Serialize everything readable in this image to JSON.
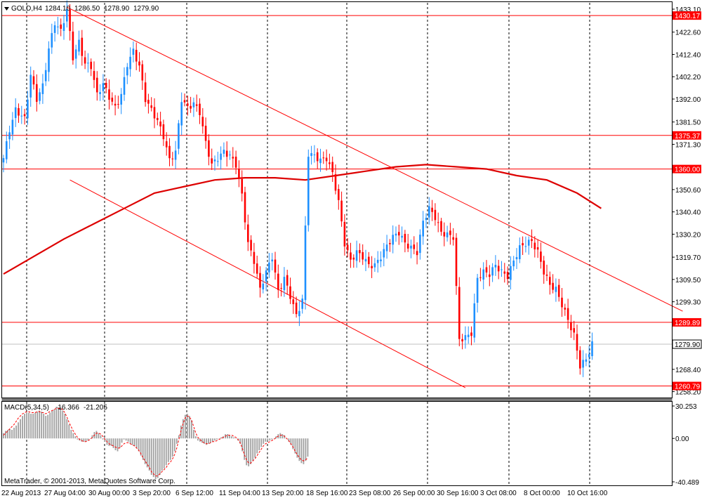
{
  "window": {
    "menu_icon": "triangle-down-icon",
    "symbol": "GOLD,H4",
    "ohlc": [
      "1284.10",
      "1286.50",
      "1278.90",
      "1279.90"
    ]
  },
  "copyright": "MetaTrader, © 2001-2013, MetaQuotes Software Corp.",
  "colors": {
    "up_candle": "#1e90ff",
    "down_candle": "#ff0000",
    "levels": "#ff0000",
    "moving_average": "#dd0000",
    "macd_histogram": "#a0a0a0",
    "macd_signal": "#ff0000",
    "grid": "#000000",
    "last_price_line": "#c0c0c0",
    "level_label_bg": "#ff0000",
    "level_label_text": "#ffffff"
  },
  "chart_data": [
    {
      "type": "candlestick",
      "title": "GOLD,H4",
      "ylim": [
        1255.5,
        1436
      ],
      "y_ticks": [
        "1433.10",
        "1422.60",
        "1412.40",
        "1402.20",
        "1392.00",
        "1381.50",
        "1371.30",
        "1350.60",
        "1340.40",
        "1330.20",
        "1319.70",
        "1309.50",
        "1299.30",
        "1268.40",
        "1258.20"
      ],
      "x_ticks": [
        "22 Aug 2013",
        "27 Aug 04:00",
        "30 Aug 00:00",
        "3 Sep 20:00",
        "6 Sep 12:00",
        "11 Sep 04:00",
        "13 Sep 20:00",
        "18 Sep 16:00",
        "23 Sep 08:00",
        "26 Sep 00:00",
        "30 Sep 16:00",
        "3 Oct 08:00",
        "8 Oct 00:00",
        "10 Oct 16:00"
      ],
      "grid": "vertical dashed",
      "last_price": "1279.90",
      "horizontal_levels": [
        "1430.17",
        "1375.37",
        "1360.00",
        "1289.89",
        "1260.79"
      ],
      "close_path": [
        [
          0,
          1365
        ],
        [
          2,
          1378
        ],
        [
          4,
          1387
        ],
        [
          7,
          1383
        ],
        [
          9,
          1403
        ],
        [
          11,
          1392
        ],
        [
          13,
          1398
        ],
        [
          15,
          1415
        ],
        [
          17,
          1427
        ],
        [
          19,
          1423
        ],
        [
          21,
          1433
        ],
        [
          23,
          1411
        ],
        [
          25,
          1418
        ],
        [
          27,
          1408
        ],
        [
          29,
          1407
        ],
        [
          31,
          1394
        ],
        [
          33,
          1399
        ],
        [
          35,
          1393
        ],
        [
          37,
          1388
        ],
        [
          39,
          1394
        ],
        [
          41,
          1408
        ],
        [
          43,
          1414
        ],
        [
          45,
          1407
        ],
        [
          47,
          1392
        ],
        [
          49,
          1387
        ],
        [
          51,
          1382
        ],
        [
          53,
          1375
        ],
        [
          55,
          1364
        ],
        [
          57,
          1368
        ],
        [
          59,
          1392
        ],
        [
          61,
          1388
        ],
        [
          63,
          1390
        ],
        [
          65,
          1386
        ],
        [
          67,
          1372
        ],
        [
          69,
          1362
        ],
        [
          71,
          1365
        ],
        [
          73,
          1368
        ],
        [
          75,
          1366
        ],
        [
          77,
          1362
        ],
        [
          79,
          1348
        ],
        [
          81,
          1326
        ],
        [
          83,
          1318
        ],
        [
          85,
          1305
        ],
        [
          87,
          1313
        ],
        [
          89,
          1320
        ],
        [
          91,
          1304
        ],
        [
          93,
          1310
        ],
        [
          95,
          1302
        ],
        [
          97,
          1293
        ],
        [
          99,
          1300
        ],
        [
          101,
          1367
        ],
        [
          103,
          1366
        ],
        [
          105,
          1364
        ],
        [
          107,
          1365
        ],
        [
          109,
          1358
        ],
        [
          111,
          1345
        ],
        [
          113,
          1326
        ],
        [
          115,
          1318
        ],
        [
          117,
          1322
        ],
        [
          119,
          1320
        ],
        [
          121,
          1316
        ],
        [
          123,
          1316
        ],
        [
          125,
          1320
        ],
        [
          127,
          1325
        ],
        [
          129,
          1329
        ],
        [
          131,
          1331
        ],
        [
          133,
          1326
        ],
        [
          135,
          1324
        ],
        [
          137,
          1322
        ],
        [
          139,
          1336
        ],
        [
          141,
          1342
        ],
        [
          143,
          1338
        ],
        [
          145,
          1331
        ],
        [
          147,
          1330
        ],
        [
          149,
          1329
        ],
        [
          151,
          1282
        ],
        [
          153,
          1283
        ],
        [
          155,
          1285
        ],
        [
          157,
          1310
        ],
        [
          159,
          1313
        ],
        [
          161,
          1312
        ],
        [
          163,
          1316
        ],
        [
          165,
          1313
        ],
        [
          167,
          1311
        ],
        [
          169,
          1318
        ],
        [
          171,
          1324
        ],
        [
          173,
          1326
        ],
        [
          175,
          1327
        ],
        [
          177,
          1322
        ],
        [
          179,
          1313
        ],
        [
          181,
          1307
        ],
        [
          183,
          1305
        ],
        [
          185,
          1298
        ],
        [
          187,
          1291
        ],
        [
          189,
          1284
        ],
        [
          191,
          1270
        ],
        [
          193,
          1273
        ],
        [
          195,
          1280
        ]
      ],
      "annotations": [
        {
          "type": "trendline",
          "from": [
            21,
            1434
          ],
          "to": [
            225,
            1295
          ]
        },
        {
          "type": "trendline",
          "from": [
            22,
            1355
          ],
          "to": [
            153,
            1260
          ]
        }
      ],
      "moving_average_path": [
        [
          0,
          1312
        ],
        [
          10,
          1320
        ],
        [
          20,
          1328
        ],
        [
          30,
          1335
        ],
        [
          40,
          1342
        ],
        [
          50,
          1349
        ],
        [
          60,
          1352
        ],
        [
          70,
          1355
        ],
        [
          80,
          1356
        ],
        [
          90,
          1356
        ],
        [
          100,
          1355
        ],
        [
          110,
          1357
        ],
        [
          120,
          1359
        ],
        [
          130,
          1361
        ],
        [
          140,
          1362
        ],
        [
          150,
          1361
        ],
        [
          160,
          1360
        ],
        [
          170,
          1357
        ],
        [
          180,
          1355
        ],
        [
          190,
          1349
        ],
        [
          198,
          1342
        ]
      ]
    },
    {
      "type": "bar",
      "title": "MACD(5,34,5)",
      "values_label": [
        "-16.366",
        "-21.205"
      ],
      "ylim": [
        -40.489,
        30.253
      ],
      "y_ticks": [
        "30.253",
        "0.00",
        "-40.489"
      ],
      "histogram": [
        5,
        7,
        8,
        9,
        8,
        10,
        12,
        15,
        18,
        21,
        23,
        24,
        24,
        23,
        23,
        24,
        25,
        26,
        25,
        23,
        21,
        22,
        24,
        26,
        27,
        28,
        29,
        29,
        26,
        23,
        18,
        13,
        8,
        5,
        2,
        -1,
        -2,
        -3,
        -3,
        -3,
        -2,
        0,
        3,
        6,
        7,
        5,
        3,
        -1,
        -3,
        -6,
        -7,
        -7,
        -9,
        -11,
        -12,
        -9,
        -4,
        -1,
        -2,
        -3,
        -5,
        -6,
        -7,
        -9,
        -12,
        -16,
        -20,
        -24,
        -27,
        -30,
        -34,
        -36,
        -38,
        -37,
        -34,
        -30,
        -28,
        -25,
        -22,
        -20,
        -17,
        -12,
        -5,
        3,
        12,
        18,
        22,
        23,
        21,
        17,
        8,
        2,
        -2,
        -3,
        -4,
        -5,
        -6,
        -5,
        -4,
        -3,
        -2,
        -1,
        0,
        1,
        2,
        4,
        4,
        3,
        2,
        1,
        0,
        -2,
        -5,
        -12,
        -20,
        -25,
        -26,
        -24,
        -21,
        -18,
        -14,
        -11,
        -8,
        -5,
        -3,
        -2,
        -2,
        -1,
        0,
        2,
        4,
        5,
        4,
        3,
        0,
        -3,
        -6,
        -10,
        -14,
        -18,
        -21,
        -23,
        -24,
        -21,
        -17
      ],
      "signal": [
        3,
        5,
        7,
        9,
        11,
        13,
        16,
        19,
        21,
        23,
        24,
        25,
        25,
        24,
        24,
        24,
        25,
        25,
        24,
        24,
        23,
        24,
        25,
        26,
        27,
        28,
        28,
        28,
        27,
        24,
        20,
        15,
        11,
        7,
        4,
        1,
        -1,
        -2,
        -3,
        -3,
        -2,
        -1,
        1,
        3,
        5,
        5,
        4,
        2,
        -1,
        -3,
        -5,
        -6,
        -7,
        -8,
        -9,
        -9,
        -7,
        -5,
        -4,
        -4,
        -5,
        -6,
        -7,
        -9,
        -11,
        -14,
        -18,
        -21,
        -24,
        -27,
        -31,
        -33,
        -35,
        -35,
        -33,
        -31,
        -29,
        -27,
        -24,
        -22,
        -19,
        -15,
        -9,
        -1,
        7,
        14,
        19,
        21,
        20,
        17,
        11,
        5,
        1,
        -1,
        -3,
        -4,
        -5,
        -5,
        -4,
        -3,
        -3,
        -2,
        -1,
        0,
        1,
        2,
        3,
        3,
        3,
        2,
        1,
        -1,
        -4,
        -9,
        -15,
        -20,
        -23,
        -23,
        -21,
        -19,
        -16,
        -13,
        -10,
        -7,
        -5,
        -4,
        -3,
        -2,
        -1,
        1,
        2,
        3,
        3,
        2,
        0,
        -2,
        -5,
        -8,
        -12,
        -15,
        -18,
        -20,
        -21,
        -20,
        -18
      ]
    }
  ]
}
